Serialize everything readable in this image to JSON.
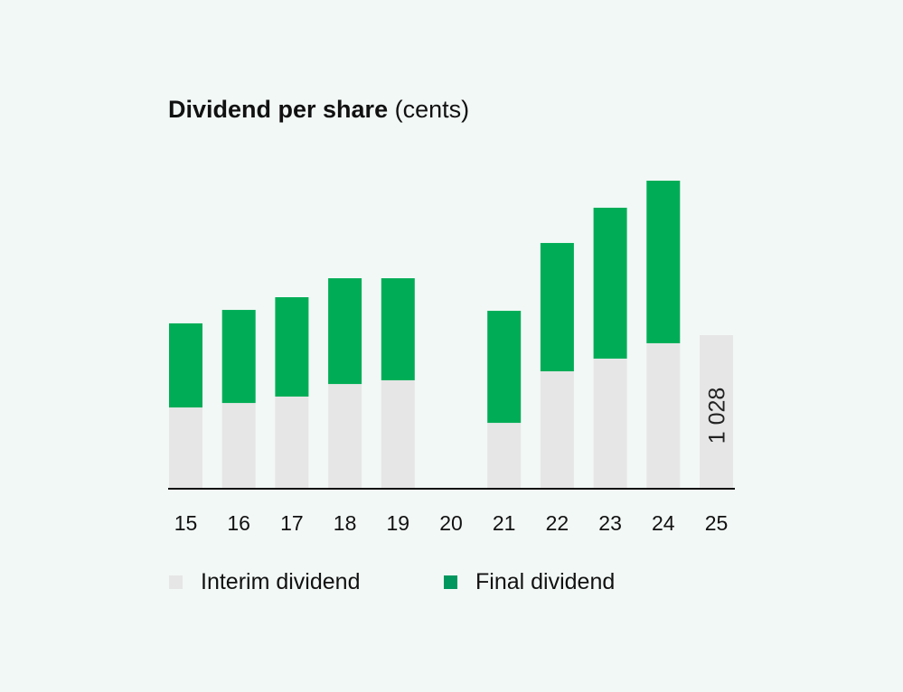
{
  "chart_data": {
    "type": "bar",
    "stacked": true,
    "title": "Dividend per share",
    "title_unit": "(cents)",
    "categories": [
      "15",
      "16",
      "17",
      "18",
      "19",
      "20",
      "21",
      "22",
      "23",
      "24",
      "25"
    ],
    "series": [
      {
        "name": "Interim dividend",
        "color": "#e6e6e6",
        "values": [
          544,
          574,
          617,
          701,
          726,
          null,
          441,
          786,
          871,
          974,
          1028
        ]
      },
      {
        "name": "Final dividend",
        "color": "#00ad56",
        "legend_color": "#00975f",
        "values": [
          563,
          623,
          665,
          708,
          683,
          null,
          750,
          859,
          1010,
          1088,
          null
        ]
      }
    ],
    "data_labels": [
      {
        "category": "25",
        "text": "1 028",
        "orientation": "vertical"
      }
    ],
    "ylim": [
      0,
      2300
    ],
    "grid": false,
    "y_axis_shown": false,
    "legend_position": "bottom-left"
  }
}
